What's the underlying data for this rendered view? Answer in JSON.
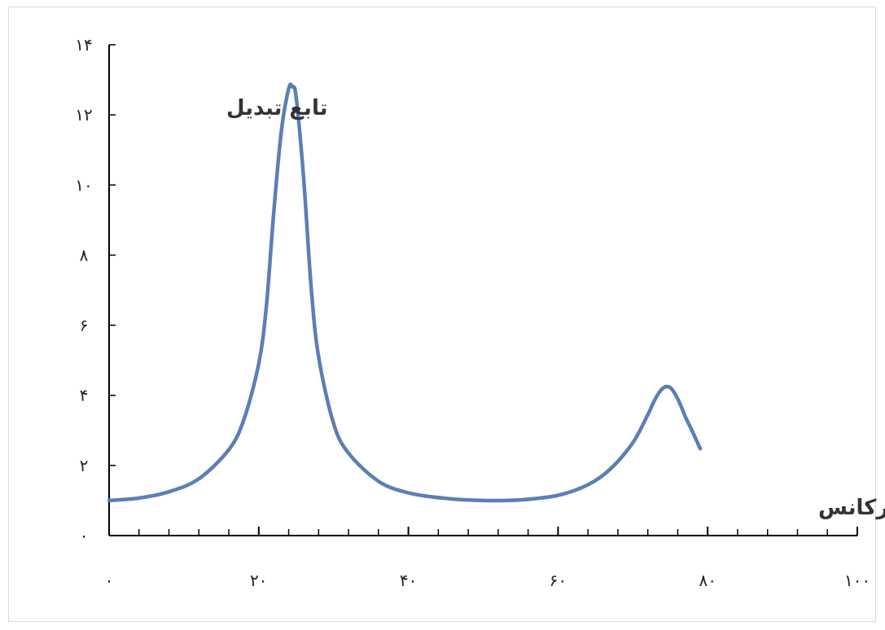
{
  "chart_data": {
    "type": "line",
    "ylabel": "تابع تبدیل",
    "xlabel": "فرکانس",
    "xlim": [
      0,
      100
    ],
    "ylim": [
      0,
      14
    ],
    "x_ticks": [
      0,
      20,
      40,
      60,
      80,
      100
    ],
    "x_tick_labels": [
      "۰",
      "۲۰",
      "۴۰",
      "۶۰",
      "۸۰",
      "۱۰۰"
    ],
    "y_ticks": [
      0,
      2,
      4,
      6,
      8,
      10,
      12,
      14
    ],
    "y_tick_labels": [
      "۰",
      "۲",
      "۴",
      "۶",
      "۸",
      "۱۰",
      "۱۲",
      "۱۴"
    ],
    "x_minor_step": 4,
    "grid": false,
    "line_color": "#5b7fb5",
    "series": [
      {
        "x": [
          0,
          4,
          8,
          12,
          16,
          18,
          20,
          21,
          22,
          23,
          24,
          24.5,
          25,
          26,
          27,
          28,
          30,
          32,
          36,
          40,
          45,
          50,
          55,
          60,
          64,
          67,
          70,
          72,
          73,
          74,
          75,
          76,
          77,
          78,
          79
        ],
        "values": [
          1.0,
          1.07,
          1.25,
          1.62,
          2.45,
          3.3,
          4.9,
          6.5,
          9.2,
          11.5,
          12.75,
          12.8,
          12.5,
          10.2,
          7.1,
          5.1,
          3.2,
          2.35,
          1.55,
          1.22,
          1.06,
          1.0,
          1.02,
          1.15,
          1.45,
          1.9,
          2.65,
          3.45,
          3.9,
          4.2,
          4.22,
          3.9,
          3.4,
          2.95,
          2.48
        ]
      }
    ]
  }
}
